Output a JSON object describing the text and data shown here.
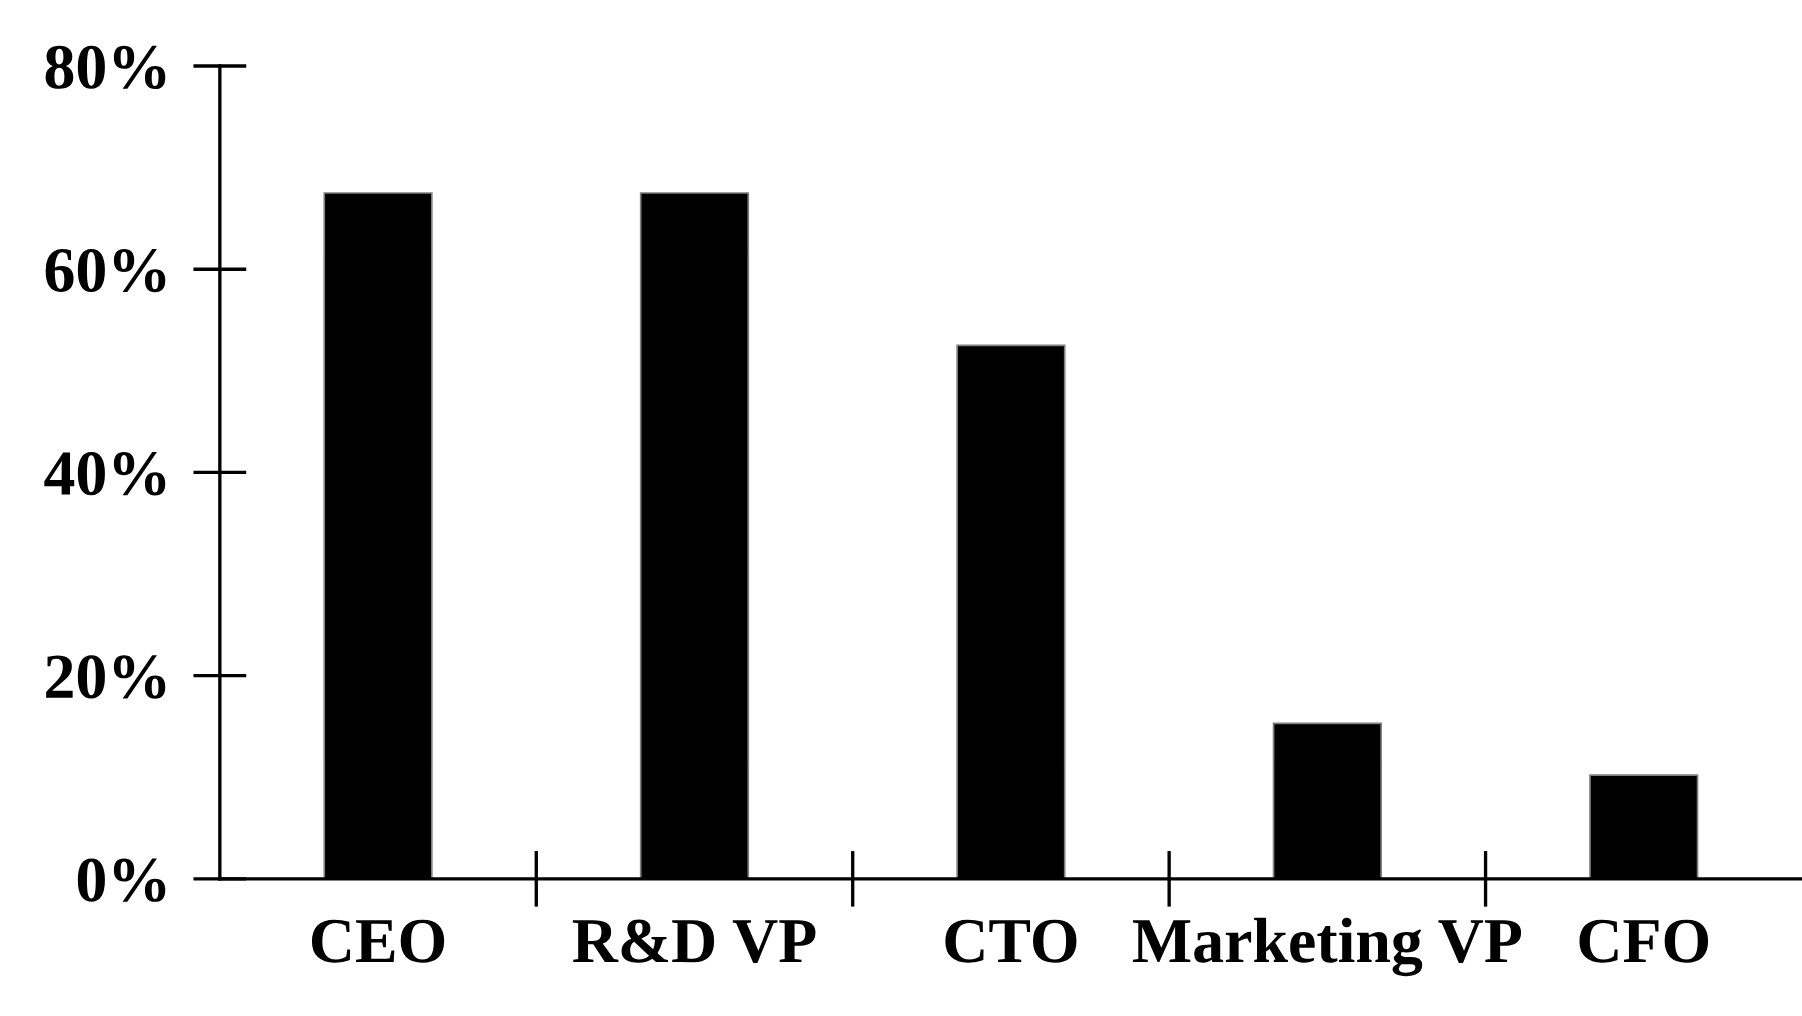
{
  "chart_data": {
    "type": "bar",
    "categories": [
      "CEO",
      "R&D VP",
      "CTO",
      "Marketing VP",
      "CFO"
    ],
    "values": [
      67.5,
      67.5,
      52.5,
      15.3,
      10.2
    ],
    "color": "#000000",
    "ylim": [
      0,
      80
    ],
    "yticks": [
      {
        "value": 0,
        "label": "0%"
      },
      {
        "value": 20,
        "label": "20%"
      },
      {
        "value": 40,
        "label": "40%"
      },
      {
        "value": 60,
        "label": "60%"
      },
      {
        "value": 80,
        "label": "80%"
      }
    ],
    "grid": false,
    "legend": false
  }
}
